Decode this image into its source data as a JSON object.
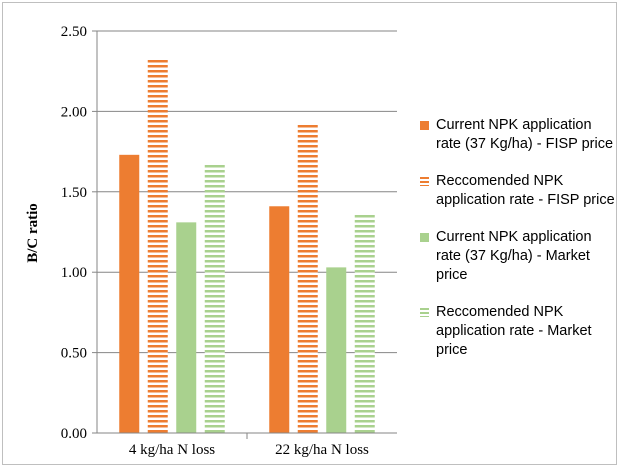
{
  "chart_data": {
    "type": "bar",
    "title": "",
    "xlabel": "",
    "ylabel": "B/C ratio",
    "ylim": [
      0,
      2.5
    ],
    "yticks": [
      "0.00",
      "0.50",
      "1.00",
      "1.50",
      "2.00",
      "2.50"
    ],
    "grid": true,
    "legend_position": "right",
    "categories": [
      "4 kg/ha N loss",
      "22 kg/ha N loss"
    ],
    "series": [
      {
        "name": "Current NPK application rate (37 Kg/ha) - FISP price",
        "values": [
          1.73,
          1.41
        ],
        "color": "#ed7d31",
        "pattern": "solid"
      },
      {
        "name": "Reccomended NPK application rate - FISP price",
        "values": [
          2.33,
          1.93
        ],
        "color": "#ed7d31",
        "pattern": "horizontal-stripes"
      },
      {
        "name": "Current NPK application rate (37 Kg/ha) - Market price",
        "values": [
          1.31,
          1.03
        ],
        "color": "#a9d18e",
        "pattern": "solid"
      },
      {
        "name": "Reccomended NPK application rate  - Market price",
        "values": [
          1.67,
          1.36
        ],
        "color": "#a9d18e",
        "pattern": "horizontal-stripes"
      }
    ]
  }
}
